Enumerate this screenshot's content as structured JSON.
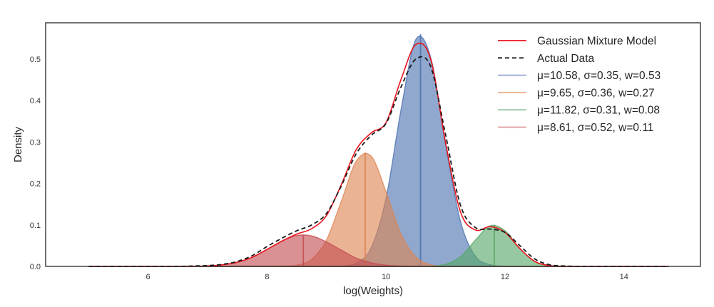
{
  "chart_data": {
    "type": "area",
    "title": "",
    "xlabel": "log(Weights)",
    "ylabel": "Density",
    "xlim": [
      4.3,
      15.3
    ],
    "ylim": [
      0.0,
      0.58
    ],
    "x_ticks": [
      6,
      8,
      10,
      12,
      14
    ],
    "x_tick_labels": [
      "6",
      "8",
      "10",
      "12",
      "14"
    ],
    "y_ticks": [
      0.0,
      0.1,
      0.2,
      0.3,
      0.4,
      0.5
    ],
    "y_tick_labels": [
      "0.0",
      "0.1",
      "0.2",
      "0.3",
      "0.4",
      "0.5"
    ],
    "grid": false,
    "legend_position": "upper right",
    "x": [
      5.0,
      5.25,
      5.5,
      5.75,
      6.0,
      6.25,
      6.5,
      6.75,
      7.0,
      7.25,
      7.5,
      7.75,
      8.0,
      8.25,
      8.5,
      8.75,
      9.0,
      9.25,
      9.5,
      9.75,
      10.0,
      10.25,
      10.5,
      10.75,
      11.0,
      11.25,
      11.5,
      11.75,
      12.0,
      12.25,
      12.5,
      12.75,
      13.0,
      13.25,
      13.5,
      13.75,
      14.0,
      14.25,
      14.5,
      14.75
    ],
    "series": [
      {
        "name": "Gaussian Mixture Model",
        "style": "line",
        "color": "#e8141c",
        "values": [
          0,
          0,
          0,
          0,
          0,
          0,
          0,
          0.0003,
          0.001,
          0.004,
          0.01,
          0.022,
          0.041,
          0.061,
          0.078,
          0.091,
          0.123,
          0.198,
          0.282,
          0.322,
          0.347,
          0.45,
          0.535,
          0.5,
          0.299,
          0.132,
          0.088,
          0.096,
          0.082,
          0.043,
          0.012,
          0.002,
          0,
          0,
          0,
          0,
          0,
          0,
          0,
          0
        ]
      },
      {
        "name": "Actual Data",
        "style": "dashed",
        "color": "#1a1a1a",
        "values": [
          0,
          0,
          0,
          0,
          0,
          0,
          0,
          0.001,
          0.002,
          0.005,
          0.012,
          0.026,
          0.048,
          0.068,
          0.086,
          0.1,
          0.128,
          0.195,
          0.272,
          0.316,
          0.345,
          0.432,
          0.5,
          0.482,
          0.318,
          0.148,
          0.094,
          0.09,
          0.082,
          0.05,
          0.018,
          0.004,
          0.001,
          0,
          0,
          0,
          0,
          0,
          0,
          0
        ]
      },
      {
        "name": "μ=10.58, σ=0.35, w=0.53",
        "style": "fill",
        "color": "#4c72b0",
        "mean": 10.58,
        "sigma": 0.35,
        "weight": 0.53,
        "peak": 0.56,
        "values": [
          0,
          0,
          0,
          0,
          0,
          0,
          0,
          0,
          0,
          0,
          0,
          0,
          0,
          0,
          0,
          0,
          0.0001,
          0.0009,
          0.008,
          0.045,
          0.164,
          0.376,
          0.547,
          0.504,
          0.294,
          0.109,
          0.025,
          0.004,
          0.0004,
          0,
          0,
          0,
          0,
          0,
          0,
          0,
          0,
          0,
          0,
          0
        ]
      },
      {
        "name": "μ=9.65, σ=0.36, w=0.27",
        "style": "fill",
        "color": "#dd8452",
        "mean": 9.65,
        "sigma": 0.36,
        "weight": 0.27,
        "peak": 0.275,
        "values": [
          0,
          0,
          0,
          0,
          0,
          0,
          0,
          0,
          0,
          0,
          0,
          0,
          0.0003,
          0.0008,
          0.003,
          0.017,
          0.064,
          0.158,
          0.254,
          0.266,
          0.18,
          0.079,
          0.023,
          0.004,
          0.0005,
          0,
          0,
          0,
          0,
          0,
          0,
          0,
          0,
          0,
          0,
          0,
          0,
          0,
          0,
          0
        ]
      },
      {
        "name": "μ=11.82, σ=0.31, w=0.08",
        "style": "fill",
        "color": "#55a868",
        "mean": 11.82,
        "sigma": 0.31,
        "weight": 0.08,
        "peak": 0.1,
        "values": [
          0,
          0,
          0,
          0,
          0,
          0,
          0,
          0,
          0,
          0,
          0,
          0,
          0,
          0,
          0,
          0,
          0,
          0,
          0,
          0,
          0,
          0,
          0.0001,
          0.0005,
          0.005,
          0.023,
          0.063,
          0.098,
          0.086,
          0.043,
          0.012,
          0.002,
          0.0002,
          0,
          0,
          0,
          0,
          0,
          0,
          0
        ]
      },
      {
        "name": "μ=8.61, σ=0.52, w=0.11",
        "style": "fill",
        "color": "#c44e52",
        "mean": 8.61,
        "sigma": 0.52,
        "weight": 0.11,
        "peak": 0.076,
        "values": [
          0,
          0,
          0,
          0,
          0,
          0,
          0.0001,
          0.0003,
          0.001,
          0.0036,
          0.01,
          0.022,
          0.041,
          0.061,
          0.0745,
          0.0736,
          0.059,
          0.039,
          0.02,
          0.009,
          0.003,
          0.001,
          0.0003,
          0,
          0,
          0,
          0,
          0,
          0,
          0,
          0,
          0,
          0,
          0,
          0,
          0,
          0,
          0,
          0,
          0
        ]
      }
    ]
  },
  "legend": {
    "items": [
      {
        "label": "Gaussian Mixture Model",
        "color": "#e8141c",
        "style": "solid"
      },
      {
        "label": "Actual Data",
        "color": "#1a1a1a",
        "style": "dashed"
      },
      {
        "label": "μ=10.58, σ=0.35, w=0.53",
        "color": "#8fa5d3",
        "style": "solid"
      },
      {
        "label": "μ=9.65, σ=0.36, w=0.27",
        "color": "#ebb08f",
        "style": "solid"
      },
      {
        "label": "μ=11.82, σ=0.31, w=0.08",
        "color": "#98c9a3",
        "style": "solid"
      },
      {
        "label": "μ=8.61, σ=0.52, w=0.11",
        "color": "#dc9a9c",
        "style": "solid"
      }
    ]
  }
}
